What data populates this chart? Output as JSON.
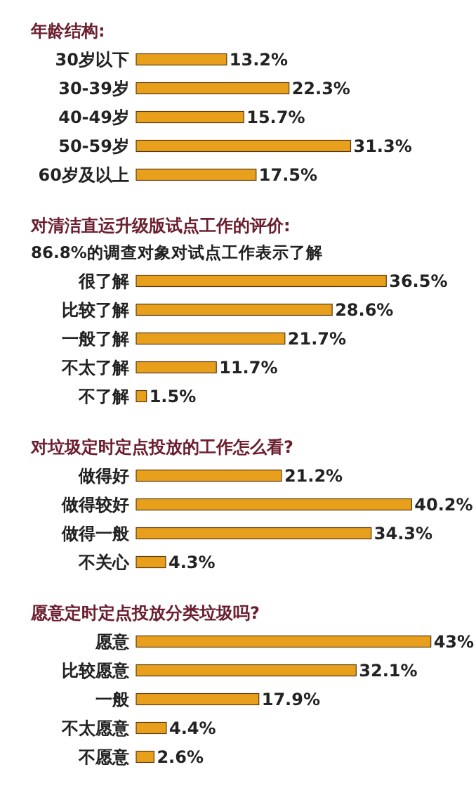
{
  "chart_data": [
    {
      "type": "bar",
      "orientation": "horizontal",
      "title": "年龄结构:",
      "categories": [
        "30岁以下",
        "30-39岁",
        "40-49岁",
        "50-59岁",
        "60岁及以上"
      ],
      "values": [
        13.2,
        22.3,
        15.7,
        31.3,
        17.5
      ],
      "value_labels": [
        "13.2%",
        "22.3%",
        "15.7%",
        "31.3%",
        "17.5%"
      ],
      "color": "#e8a01c"
    },
    {
      "type": "bar",
      "orientation": "horizontal",
      "title": "对清洁直运升级版试点工作的评价:",
      "subtitle": "86.8%的调查对象对试点工作表示了解",
      "categories": [
        "很了解",
        "比较了解",
        "一般了解",
        "不太了解",
        "不了解"
      ],
      "values": [
        36.5,
        28.6,
        21.7,
        11.7,
        1.5
      ],
      "value_labels": [
        "36.5%",
        "28.6%",
        "21.7%",
        "11.7%",
        "1.5%"
      ],
      "color": "#e8a01c"
    },
    {
      "type": "bar",
      "orientation": "horizontal",
      "title": "对垃圾定时定点投放的工作怎么看?",
      "categories": [
        "做得好",
        "做得较好",
        "做得一般",
        "不关心"
      ],
      "values": [
        21.2,
        40.2,
        34.3,
        4.3
      ],
      "value_labels": [
        "21.2%",
        "40.2%",
        "34.3%",
        "4.3%"
      ],
      "color": "#e8a01c"
    },
    {
      "type": "bar",
      "orientation": "horizontal",
      "title": "愿意定时定点投放分类垃圾吗?",
      "categories": [
        "愿意",
        "比较愿意",
        "一般",
        "不太愿意",
        "不愿意"
      ],
      "values": [
        43,
        32.1,
        17.9,
        4.4,
        2.6
      ],
      "value_labels": [
        "43%",
        "32.1%",
        "17.9%",
        "4.4%",
        "2.6%"
      ],
      "color": "#e8a01c"
    }
  ]
}
